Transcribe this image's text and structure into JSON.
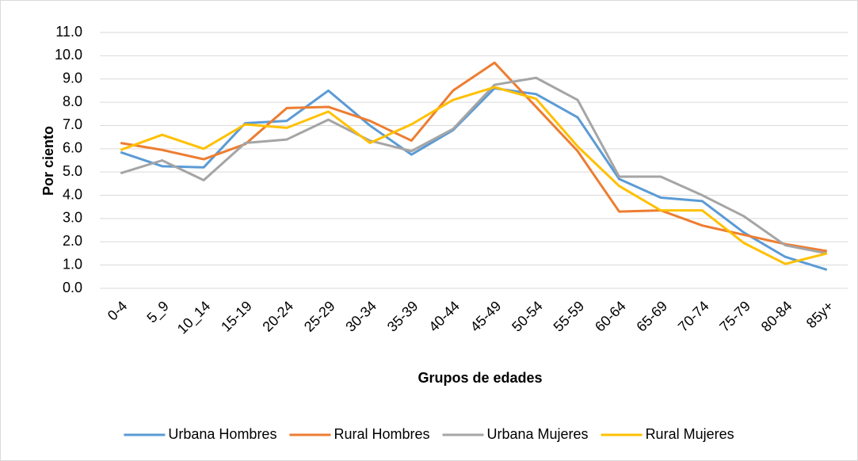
{
  "chart_data": {
    "type": "line",
    "x_label": "Grupos de edades",
    "y_label": "Por ciento",
    "categories": [
      "0-4",
      "5_9",
      "10_14",
      "15-19",
      "20-24",
      "25-29",
      "30-34",
      "35-39",
      "40-44",
      "45-49",
      "50-54",
      "55-59",
      "60-64",
      "65-69",
      "70-74",
      "75-79",
      "80-84",
      "85y+"
    ],
    "series": [
      {
        "name": "Urbana Hombres",
        "color": "#5b9bd5",
        "values": [
          5.85,
          5.25,
          5.2,
          7.1,
          7.2,
          8.5,
          7.0,
          5.75,
          6.8,
          8.6,
          8.35,
          7.35,
          4.7,
          3.9,
          3.75,
          2.4,
          1.35,
          0.8
        ]
      },
      {
        "name": "Rural Hombres",
        "color": "#ed7d31",
        "values": [
          6.25,
          5.95,
          5.55,
          6.2,
          7.75,
          7.8,
          7.2,
          6.35,
          8.5,
          9.7,
          7.8,
          5.9,
          3.3,
          3.35,
          2.7,
          2.3,
          1.9,
          1.6
        ]
      },
      {
        "name": "Urbana Mujeres",
        "color": "#a5a5a5",
        "values": [
          4.95,
          5.5,
          4.65,
          6.25,
          6.4,
          7.25,
          6.35,
          5.9,
          6.85,
          8.75,
          9.05,
          8.1,
          4.8,
          4.8,
          4.0,
          3.1,
          1.85,
          1.5
        ]
      },
      {
        "name": "Rural Mujeres",
        "color": "#ffc000",
        "values": [
          5.95,
          6.6,
          6.0,
          7.05,
          6.9,
          7.6,
          6.25,
          7.05,
          8.1,
          8.65,
          8.15,
          6.1,
          4.4,
          3.35,
          3.35,
          1.95,
          1.05,
          1.5
        ]
      }
    ],
    "ylim": [
      0,
      11
    ],
    "yticks": [
      {
        "value": 0,
        "label": "0.0"
      },
      {
        "value": 1,
        "label": "1.0"
      },
      {
        "value": 2,
        "label": "2.0"
      },
      {
        "value": 3,
        "label": "3.0"
      },
      {
        "value": 4,
        "label": "4.0"
      },
      {
        "value": 5,
        "label": "5.0"
      },
      {
        "value": 6,
        "label": "6.0"
      },
      {
        "value": 7,
        "label": "7.0"
      },
      {
        "value": 8,
        "label": "8.0"
      },
      {
        "value": 9,
        "label": "9.0"
      },
      {
        "value": 10,
        "label": "10.0"
      },
      {
        "value": 11,
        "label": "11.0"
      }
    ],
    "grid": true,
    "legend": "bottom"
  }
}
